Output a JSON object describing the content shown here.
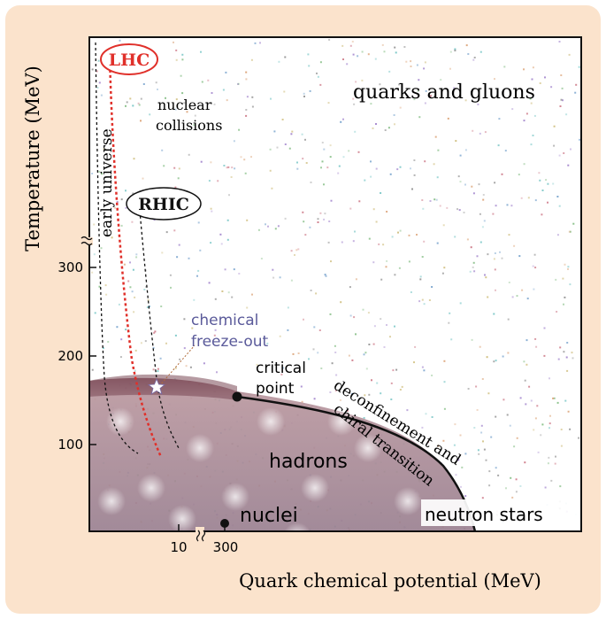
{
  "axes": {
    "x_label": "Quark chemical potential (MeV)",
    "y_label": "Temperature (MeV)",
    "x_ticks": [
      "10",
      "300"
    ],
    "y_ticks": [
      "100",
      "200",
      "300"
    ]
  },
  "labels": {
    "quarks_gluons": "quarks and gluons",
    "nuclear_collisions_1": "nuclear",
    "nuclear_collisions_2": "collisions",
    "early_universe": "early universe",
    "lhc": "LHC",
    "rhic": "RHIC",
    "chemical_freeze_out_1": "chemical",
    "chemical_freeze_out_2": "freeze-out",
    "critical_point_1": "critical",
    "critical_point_2": "point",
    "transition_1": "deconfinement and",
    "transition_2": "chiral transition",
    "hadrons": "hadrons",
    "nuclei": "nuclei",
    "neutron_stars": "neutron stars"
  },
  "colors": {
    "panel_bg": "#fbe3cc",
    "hadron_fill": "#a57f8a",
    "lhc_red": "#e0302a",
    "freeze_out_label": "#5a5a9a"
  }
}
